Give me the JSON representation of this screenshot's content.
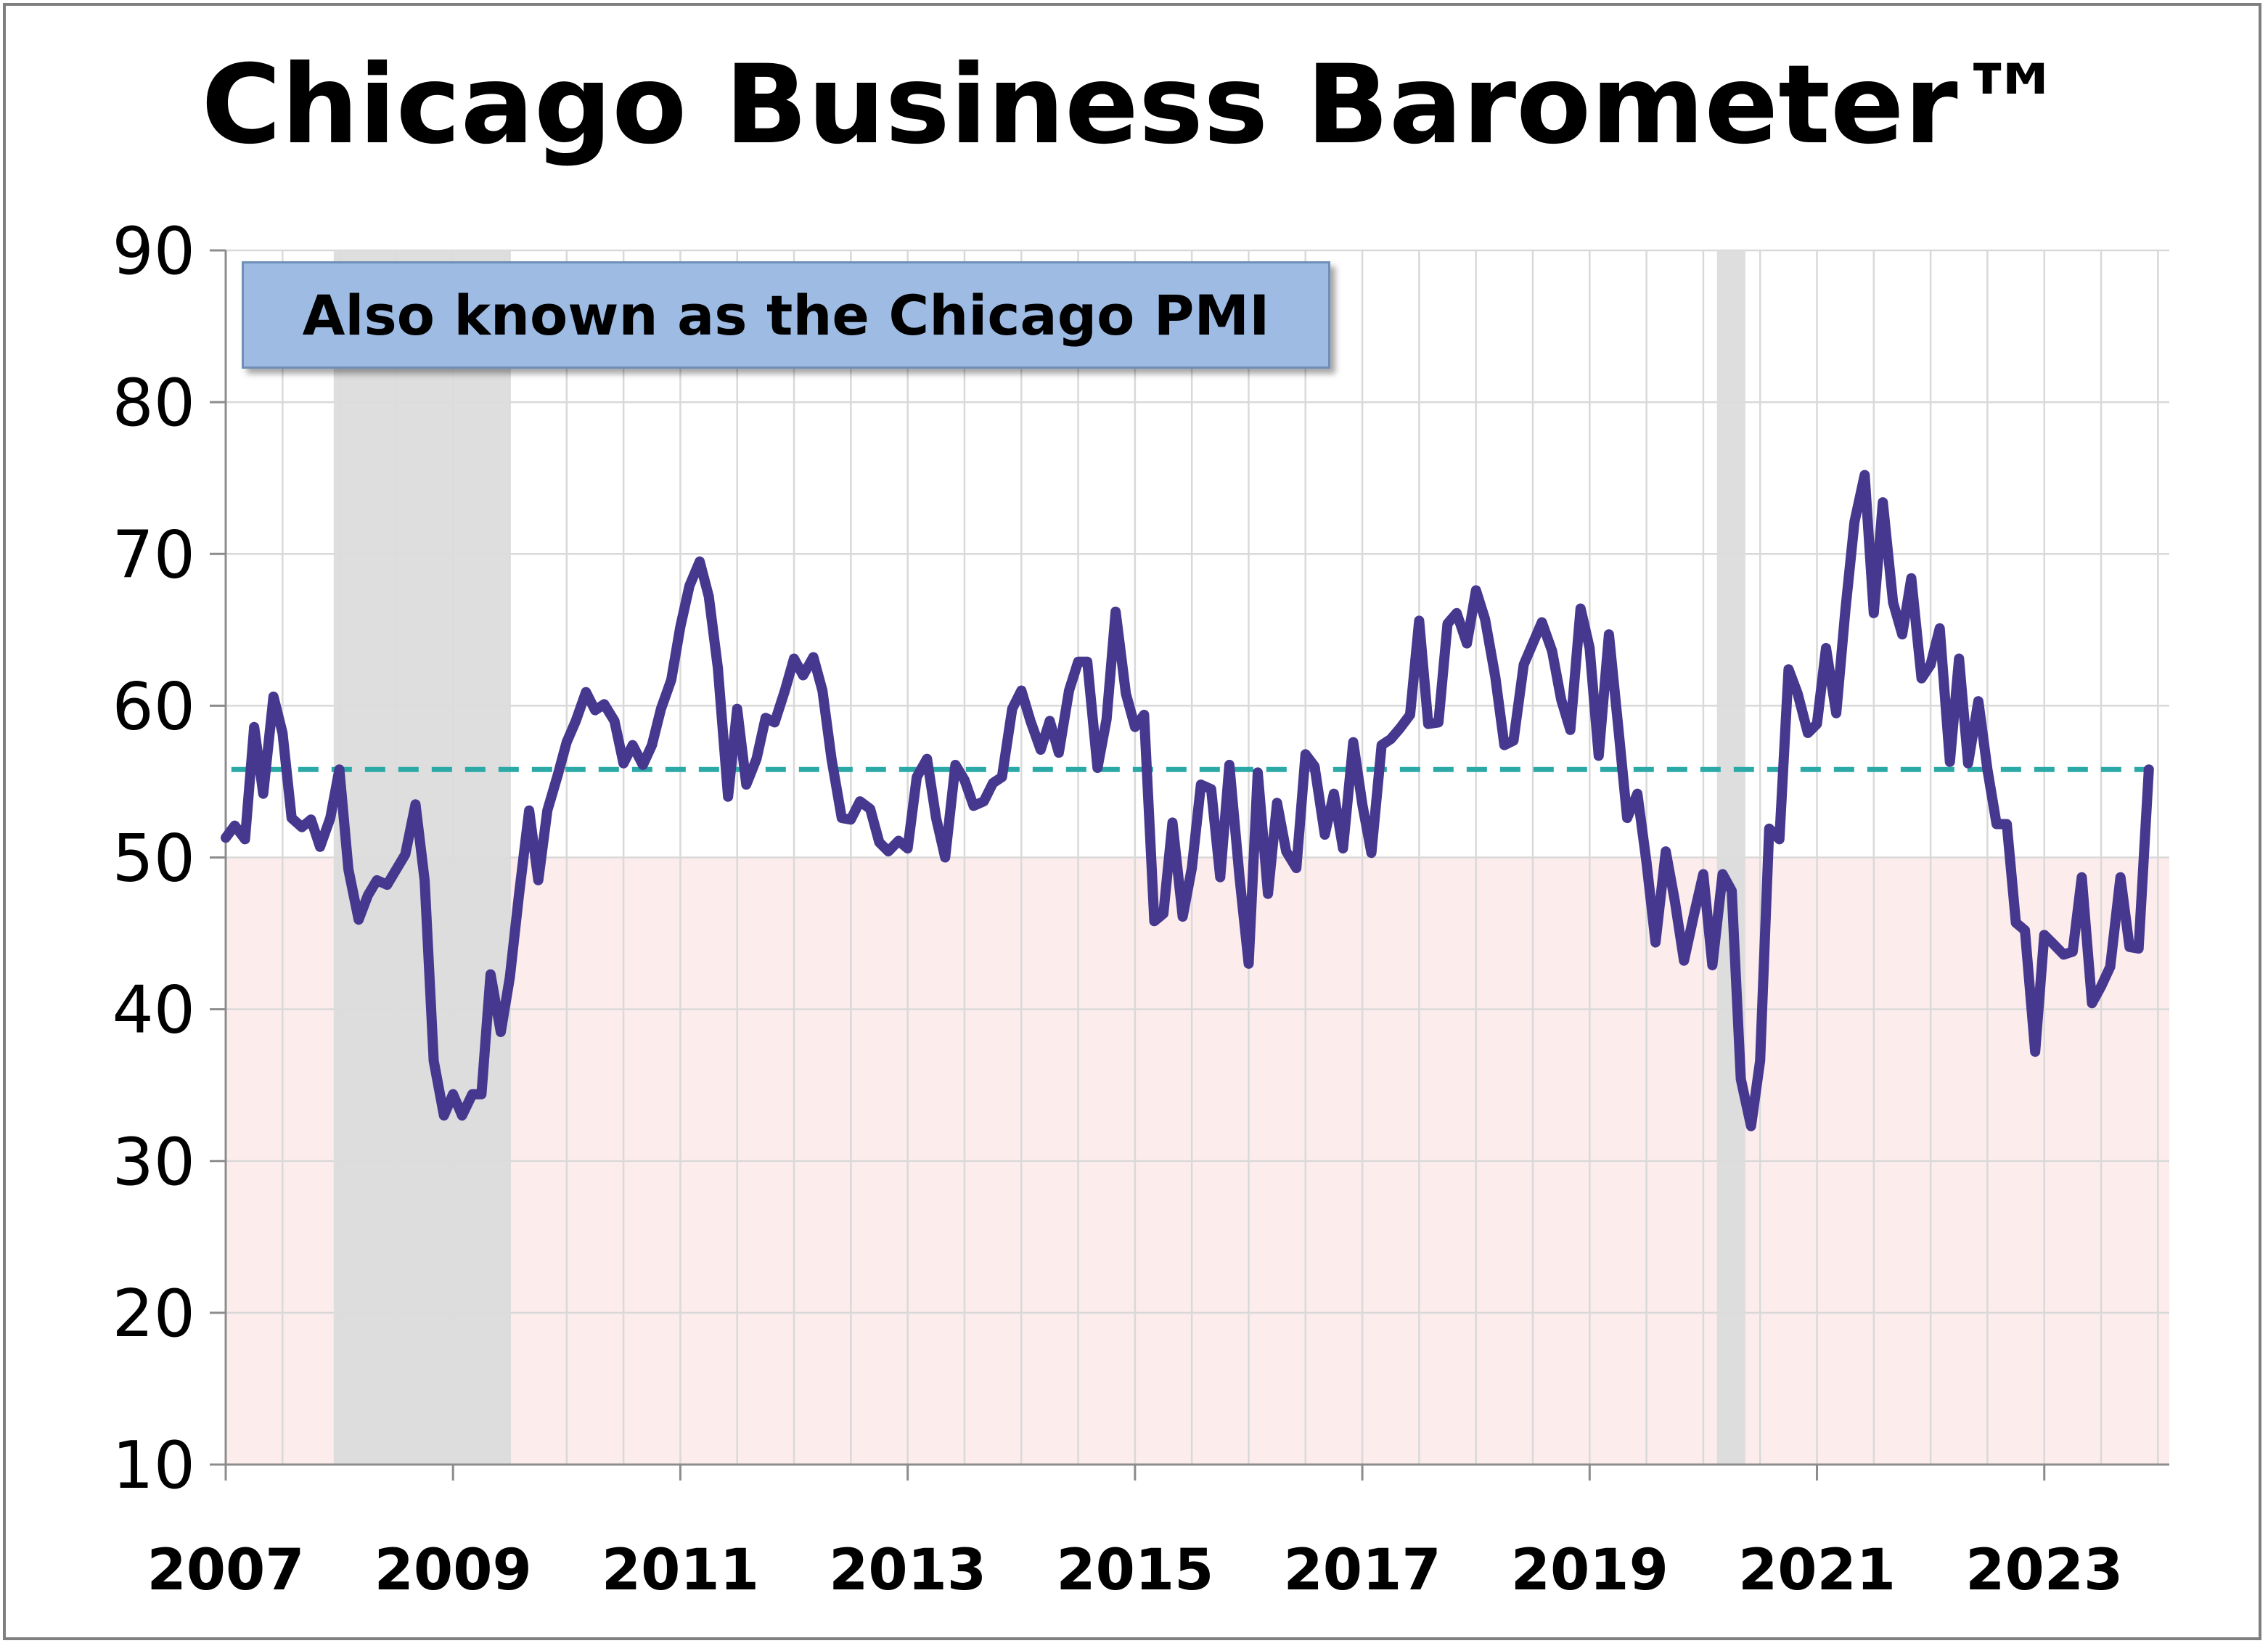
{
  "title": "Chicago Business Barometer™",
  "annotation": "Also known as the Chicago PMI",
  "colors": {
    "line": "#47388f",
    "average_line": "#2aa9a6",
    "recession_shade": "#dcdcdc",
    "contraction_zone": "#fdecec",
    "grid": "#d9d9d9",
    "annotation_bg": "#9dbbe3"
  },
  "chart_data": {
    "type": "line",
    "title": "Chicago Business Barometer™",
    "xlabel": "",
    "ylabel": "",
    "ylim": [
      10,
      90
    ],
    "xlim": [
      2007.0,
      2024.1
    ],
    "y_ticks": [
      10,
      20,
      30,
      40,
      50,
      60,
      70,
      80,
      90
    ],
    "x_ticks": [
      2007,
      2009,
      2011,
      2013,
      2015,
      2017,
      2019,
      2021,
      2023
    ],
    "x_tick_labels": [
      "2007",
      "2009",
      "2011",
      "2013",
      "2015",
      "2017",
      "2019",
      "2021",
      "2023"
    ],
    "grid": true,
    "reference_line": {
      "y": 55.8,
      "style": "dashed"
    },
    "contraction_zone": {
      "y_from": 10,
      "y_to": 50
    },
    "recession_bands": [
      [
        2007.95,
        2009.5
      ],
      [
        2020.12,
        2020.37
      ]
    ],
    "series": [
      {
        "name": "",
        "x": [
          2007.0,
          2007.08,
          2007.17,
          2007.25,
          2007.33,
          2007.42,
          2007.5,
          2007.58,
          2007.67,
          2007.75,
          2007.83,
          2007.92,
          2008.0,
          2008.08,
          2008.17,
          2008.25,
          2008.33,
          2008.42,
          2008.5,
          2008.58,
          2008.67,
          2008.75,
          2008.83,
          2008.92,
          2009.0,
          2009.08,
          2009.17,
          2009.25,
          2009.33,
          2009.42,
          2009.5,
          2009.58,
          2009.67,
          2009.75,
          2009.83,
          2009.92,
          2010.0,
          2010.08,
          2010.17,
          2010.25,
          2010.33,
          2010.42,
          2010.5,
          2010.58,
          2010.67,
          2010.75,
          2010.83,
          2010.92,
          2011.0,
          2011.08,
          2011.17,
          2011.25,
          2011.33,
          2011.42,
          2011.5,
          2011.58,
          2011.67,
          2011.75,
          2011.83,
          2011.92,
          2012.0,
          2012.08,
          2012.17,
          2012.25,
          2012.33,
          2012.42,
          2012.5,
          2012.58,
          2012.67,
          2012.75,
          2012.83,
          2012.92,
          2013.0,
          2013.08,
          2013.17,
          2013.25,
          2013.33,
          2013.42,
          2013.5,
          2013.58,
          2013.67,
          2013.75,
          2013.83,
          2013.92,
          2014.0,
          2014.08,
          2014.17,
          2014.25,
          2014.33,
          2014.42,
          2014.5,
          2014.58,
          2014.67,
          2014.75,
          2014.83,
          2014.92,
          2015.0,
          2015.08,
          2015.17,
          2015.25,
          2015.33,
          2015.42,
          2015.5,
          2015.58,
          2015.67,
          2015.75,
          2015.83,
          2015.92,
          2016.0,
          2016.08,
          2016.17,
          2016.25,
          2016.33,
          2016.42,
          2016.5,
          2016.58,
          2016.67,
          2016.75,
          2016.83,
          2016.92,
          2017.0,
          2017.08,
          2017.17,
          2017.25,
          2017.33,
          2017.42,
          2017.5,
          2017.58,
          2017.67,
          2017.75,
          2017.83,
          2017.92,
          2018.0,
          2018.08,
          2018.17,
          2018.25,
          2018.33,
          2018.42,
          2018.5,
          2018.58,
          2018.67,
          2018.75,
          2018.83,
          2018.92,
          2019.0,
          2019.08,
          2019.17,
          2019.25,
          2019.33,
          2019.42,
          2019.5,
          2019.58,
          2019.67,
          2019.75,
          2019.83,
          2019.92,
          2020.0,
          2020.08,
          2020.17,
          2020.25,
          2020.33,
          2020.42,
          2020.5,
          2020.58,
          2020.67,
          2020.75,
          2020.83,
          2020.92,
          2021.0,
          2021.08,
          2021.17,
          2021.25,
          2021.33,
          2021.42,
          2021.5,
          2021.58,
          2021.67,
          2021.75,
          2021.83,
          2021.92,
          2022.0,
          2022.08,
          2022.17,
          2022.25,
          2022.33,
          2022.42,
          2022.5,
          2022.58,
          2022.67,
          2022.75,
          2022.83,
          2022.92,
          2023.0,
          2023.08,
          2023.17,
          2023.25,
          2023.33,
          2023.42,
          2023.5,
          2023.58,
          2023.67,
          2023.75,
          2023.83,
          2023.92
        ],
        "values": [
          51.3,
          52.1,
          51.2,
          58.6,
          54.2,
          60.6,
          58.2,
          52.6,
          52.0,
          52.5,
          50.7,
          52.6,
          55.8,
          49.2,
          45.9,
          47.5,
          48.5,
          48.2,
          49.2,
          50.2,
          53.5,
          48.5,
          36.6,
          33.0,
          34.4,
          33.0,
          34.4,
          34.4,
          42.3,
          38.5,
          42.1,
          47.5,
          53.1,
          48.5,
          53.1,
          55.4,
          57.6,
          59.0,
          60.9,
          59.7,
          60.1,
          59.0,
          56.2,
          57.4,
          56.1,
          57.4,
          59.8,
          61.7,
          65.2,
          67.9,
          69.5,
          67.2,
          62.5,
          54.0,
          59.8,
          54.8,
          56.5,
          59.2,
          58.9,
          61.0,
          63.1,
          62.0,
          63.2,
          61.0,
          56.5,
          52.6,
          52.5,
          53.7,
          53.2,
          51.0,
          50.4,
          51.1,
          50.6,
          55.3,
          56.5,
          52.6,
          50.0,
          56.1,
          55.1,
          53.4,
          53.7,
          54.9,
          55.3,
          59.8,
          61.0,
          59.0,
          57.1,
          59.0,
          56.9,
          61.0,
          62.9,
          62.9,
          55.9,
          59.1,
          66.2,
          60.8,
          58.6,
          59.4,
          45.8,
          46.3,
          52.3,
          46.1,
          49.3,
          54.8,
          54.5,
          48.7,
          56.1,
          48.7,
          43.0,
          55.6,
          47.6,
          53.6,
          50.4,
          49.3,
          56.8,
          56.0,
          51.5,
          54.2,
          50.6,
          57.6,
          53.5,
          50.3,
          57.4,
          57.8,
          58.5,
          59.4,
          65.6,
          58.8,
          58.9,
          65.4,
          66.1,
          64.1,
          67.6,
          65.7,
          61.9,
          57.4,
          57.7,
          62.7,
          64.1,
          65.5,
          63.6,
          60.4,
          58.4,
          66.4,
          63.8,
          56.7,
          64.7,
          58.7,
          52.6,
          54.2,
          49.7,
          44.4,
          50.4,
          47.1,
          43.2,
          46.3,
          48.9,
          42.9,
          48.9,
          47.8,
          35.4,
          32.3,
          36.6,
          51.9,
          51.2,
          62.4,
          60.8,
          58.2,
          58.8,
          63.8,
          59.5,
          66.3,
          72.1,
          75.2,
          66.1,
          73.4,
          66.8,
          64.7,
          68.4,
          61.8,
          62.7,
          65.1,
          56.3,
          63.1,
          56.2,
          60.3,
          55.8,
          52.2,
          52.2,
          45.7,
          45.2,
          37.2,
          44.9,
          44.3,
          43.6,
          43.8,
          48.7,
          40.4,
          41.5,
          42.8,
          48.7,
          44.1,
          44.0,
          55.8
        ]
      }
    ]
  }
}
